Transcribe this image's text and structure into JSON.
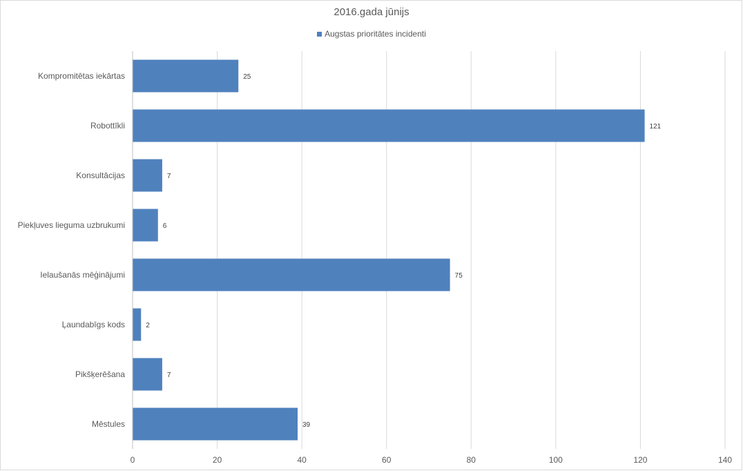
{
  "chart_data": {
    "type": "bar",
    "orientation": "horizontal",
    "title": "2016.gada jūnijs",
    "legend_position": "top",
    "categories": [
      "Kompromitētas iekārtas",
      "Robottīkli",
      "Konsultācijas",
      "Piekļuves lieguma uzbrukumi",
      "Ielaušanās mēģinājumi",
      "Ļaundabīgs kods",
      "Pikšķerēšana",
      "Mēstules"
    ],
    "series": [
      {
        "name": "Augstas prioritātes incidenti",
        "color": "#4f81bd",
        "values": [
          25,
          121,
          7,
          6,
          75,
          2,
          7,
          39
        ]
      }
    ],
    "xlim": [
      0,
      140
    ],
    "xticks": [
      0,
      20,
      40,
      60,
      80,
      100,
      120,
      140
    ],
    "grid": true,
    "data_labels": true
  }
}
